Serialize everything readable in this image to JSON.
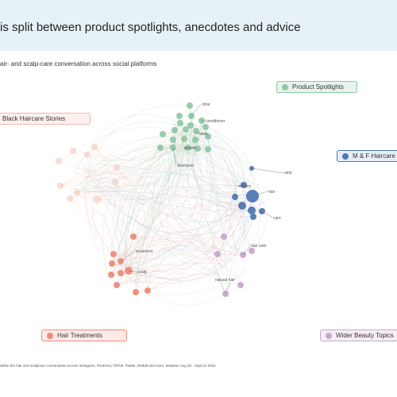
{
  "header": {
    "title": "is split between product spotlights, anecdotes and advice",
    "subtitle": "air- and scalp-care conversation across social platforms"
  },
  "footnote": "within the hair and scalpcare conversation across Instagram, Pinterest, TikTok, Twitter, Reddit and more, between Aug 26 - Sept 21 2021.",
  "legend": [
    {
      "key": "product",
      "label": "Product Spotlights",
      "color": "#8fc9a3",
      "bg": "#e7f4ec",
      "border": "#8fc9a3"
    },
    {
      "key": "black",
      "label": "Black Haircare Stories",
      "color": "#f5c4b6",
      "bg": "#fdf0ec",
      "border": "#f1b9a8"
    },
    {
      "key": "mf",
      "label": "M & F Haircare",
      "color": "#4f78b3",
      "bg": "#e8eef7",
      "border": "#4f78b3"
    },
    {
      "key": "treatments",
      "label": "Hair Treatments",
      "color": "#ee8b78",
      "bg": "#fdeae6",
      "border": "#ee8b78"
    },
    {
      "key": "wider",
      "label": "Wider Beauty Topics",
      "color": "#c9a9c9",
      "bg": "#f5eef5",
      "border": "#c9a9c9"
    }
  ],
  "node_labels": [
    {
      "key": "time",
      "text": "time"
    },
    {
      "key": "conditioner",
      "text": "conditioner"
    },
    {
      "key": "wash",
      "text": "wash"
    },
    {
      "key": "growth",
      "text": "growth"
    },
    {
      "key": "shampoo",
      "text": "shampoo"
    },
    {
      "key": "amp",
      "text": "amp"
    },
    {
      "key": "women",
      "text": "women"
    },
    {
      "key": "hair",
      "text": "hair"
    },
    {
      "key": "care",
      "text": "care"
    },
    {
      "key": "treatment",
      "text": "treatment"
    },
    {
      "key": "scalp",
      "text": "scalp"
    },
    {
      "key": "haircare",
      "text": "hair care"
    },
    {
      "key": "naturalhair",
      "text": "natural hair"
    }
  ]
}
